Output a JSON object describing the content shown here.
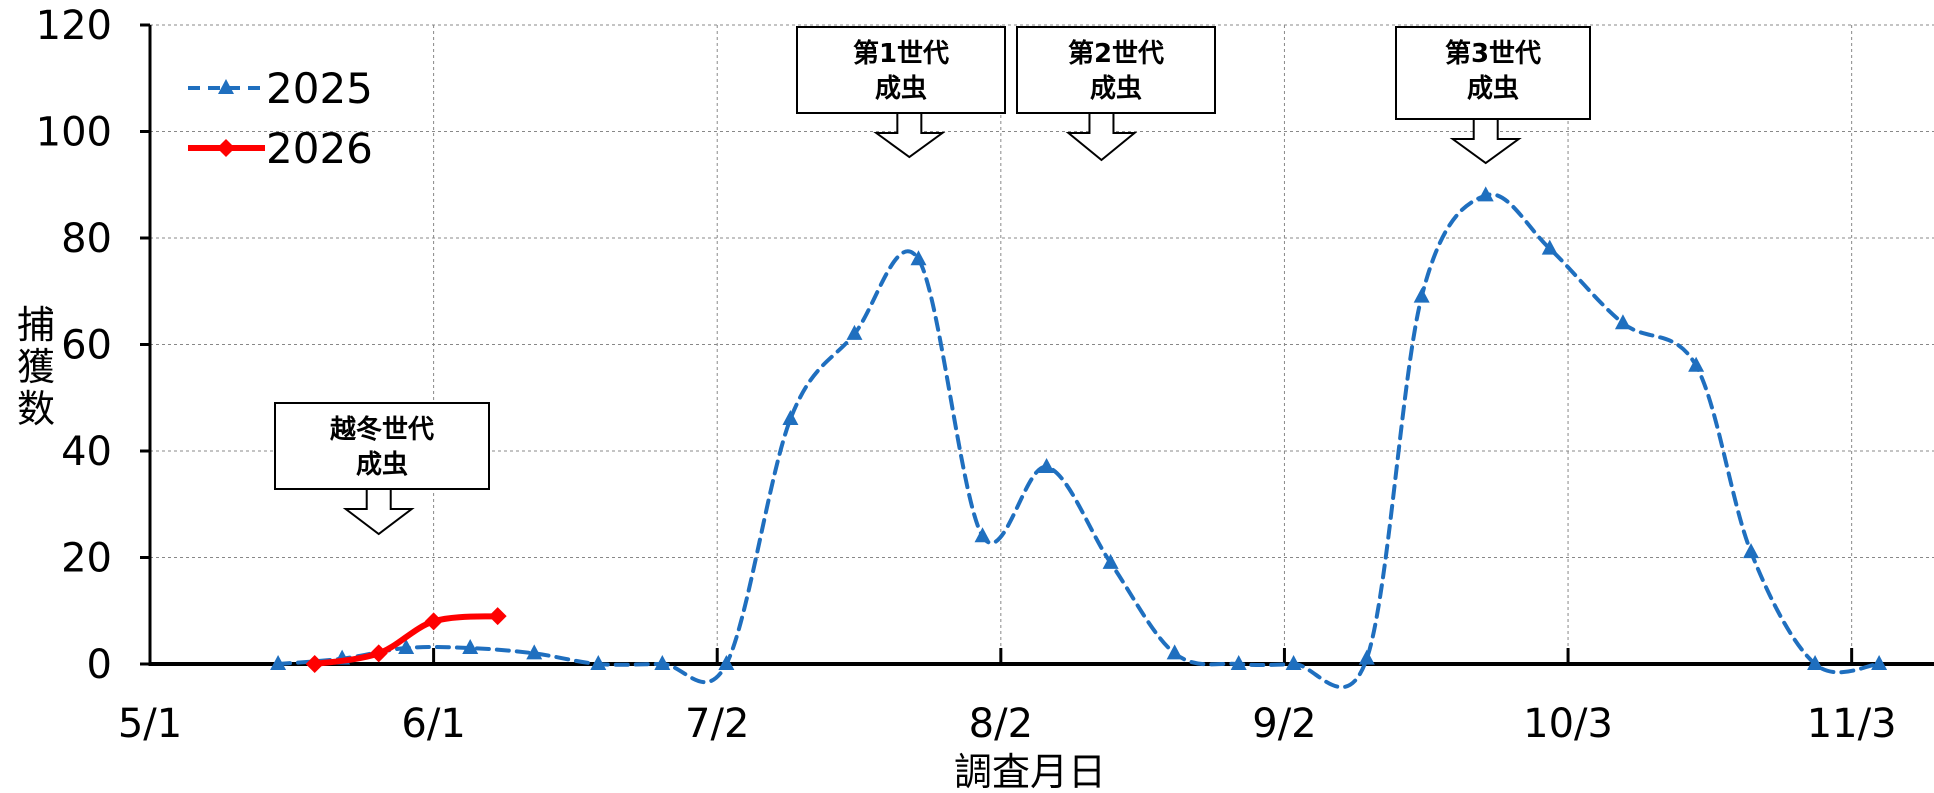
{
  "chart_data": {
    "type": "line",
    "xlabel": "調査月日",
    "ylabel": "捕獲数",
    "ylim": [
      0,
      120
    ],
    "yticks": [
      0,
      20,
      40,
      60,
      80,
      100,
      120
    ],
    "xlim": [
      "2025-05-01",
      "2025-11-12"
    ],
    "xticks": [
      {
        "date": "2025-05-01",
        "label": "5/1"
      },
      {
        "date": "2025-06-01",
        "label": "6/1"
      },
      {
        "date": "2025-07-02",
        "label": "7/2"
      },
      {
        "date": "2025-08-02",
        "label": "8/2"
      },
      {
        "date": "2025-09-02",
        "label": "9/2"
      },
      {
        "date": "2025-10-03",
        "label": "10/3"
      },
      {
        "date": "2025-11-03",
        "label": "11/3"
      }
    ],
    "grid": true,
    "legend_position": "top-left",
    "series": [
      {
        "name": "2025",
        "color": "#1F6FBF",
        "line_style": "dashed",
        "marker": "triangle",
        "points": [
          {
            "x": "2025-05-15",
            "y": 0
          },
          {
            "x": "2025-05-22",
            "y": 1
          },
          {
            "x": "2025-05-29",
            "y": 3
          },
          {
            "x": "2025-06-05",
            "y": 3
          },
          {
            "x": "2025-06-12",
            "y": 2
          },
          {
            "x": "2025-06-19",
            "y": 0
          },
          {
            "x": "2025-06-26",
            "y": 0
          },
          {
            "x": "2025-07-03",
            "y": 0
          },
          {
            "x": "2025-07-10",
            "y": 46
          },
          {
            "x": "2025-07-17",
            "y": 62
          },
          {
            "x": "2025-07-24",
            "y": 76
          },
          {
            "x": "2025-07-31",
            "y": 24
          },
          {
            "x": "2025-08-07",
            "y": 37
          },
          {
            "x": "2025-08-14",
            "y": 19
          },
          {
            "x": "2025-08-21",
            "y": 2
          },
          {
            "x": "2025-08-28",
            "y": 0
          },
          {
            "x": "2025-09-03",
            "y": 0
          },
          {
            "x": "2025-09-11",
            "y": 1
          },
          {
            "x": "2025-09-17",
            "y": 69
          },
          {
            "x": "2025-09-24",
            "y": 88
          },
          {
            "x": "2025-10-01",
            "y": 78
          },
          {
            "x": "2025-10-09",
            "y": 64
          },
          {
            "x": "2025-10-17",
            "y": 56
          },
          {
            "x": "2025-10-23",
            "y": 21
          },
          {
            "x": "2025-10-30",
            "y": 0
          },
          {
            "x": "2025-11-06",
            "y": 0
          }
        ]
      },
      {
        "name": "2026",
        "color": "#FF0000",
        "line_style": "solid",
        "marker": "diamond",
        "points": [
          {
            "x": "2025-05-19",
            "y": 0
          },
          {
            "x": "2025-05-26",
            "y": 2
          },
          {
            "x": "2025-06-01",
            "y": 8
          },
          {
            "x": "2025-06-08",
            "y": 9
          }
        ]
      }
    ],
    "annotations": [
      {
        "line1": "越冬世代",
        "line2": "成虫",
        "target_x": "2025-05-26"
      },
      {
        "line1": "第1世代",
        "line2": "成虫",
        "target_x": "2025-07-23"
      },
      {
        "line1": "第2世代",
        "line2": "成虫",
        "target_x": "2025-08-13"
      },
      {
        "line1": "第3世代",
        "line2": "成虫",
        "target_x": "2025-09-24"
      }
    ]
  }
}
